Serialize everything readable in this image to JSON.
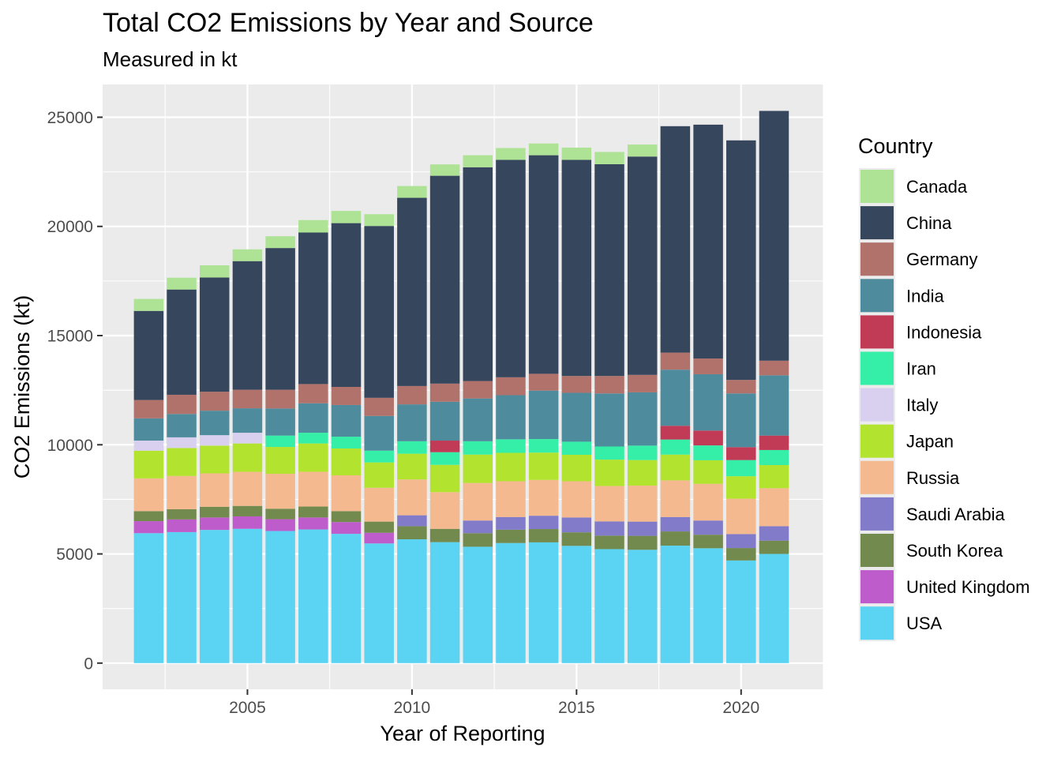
{
  "chart_data": {
    "type": "bar",
    "stacked": true,
    "title": "Total CO2 Emissions by Year and Source",
    "subtitle": "Measured in kt",
    "xlabel": "Year of Reporting",
    "ylabel": "CO2 Emissions (kt)",
    "x": [
      2002,
      2003,
      2004,
      2005,
      2006,
      2007,
      2008,
      2009,
      2010,
      2011,
      2012,
      2013,
      2014,
      2015,
      2016,
      2017,
      2018,
      2019,
      2020,
      2021
    ],
    "xlim": [
      2000.6,
      2022.5
    ],
    "x_ticks": [
      2005,
      2010,
      2015,
      2020
    ],
    "ylim": [
      -1200,
      26500
    ],
    "y_ticks": [
      0,
      5000,
      10000,
      15000,
      20000,
      25000
    ],
    "legend_title": "Country",
    "legend_position": "right",
    "grid": true,
    "stack_order_bottom_to_top": [
      "USA",
      "United Kingdom",
      "South Korea",
      "Saudi Arabia",
      "Russia",
      "Japan",
      "Italy",
      "Iran",
      "Indonesia",
      "India",
      "Germany",
      "China",
      "Canada"
    ],
    "series": [
      {
        "name": "Canada",
        "color": "#aee396",
        "values": [
          550,
          540,
          560,
          540,
          540,
          570,
          560,
          540,
          540,
          520,
          550,
          540,
          540,
          560,
          560,
          550,
          null,
          null,
          null,
          null
        ]
      },
      {
        "name": "China",
        "color": "#36465d",
        "values": [
          4080,
          4820,
          5230,
          5890,
          6490,
          6940,
          7500,
          7870,
          8620,
          9520,
          9790,
          9960,
          10010,
          9900,
          9700,
          10000,
          10370,
          10710,
          10970,
          11440
        ]
      },
      {
        "name": "Germany",
        "color": "#b0726a",
        "values": [
          840,
          880,
          870,
          850,
          860,
          880,
          830,
          830,
          840,
          830,
          800,
          820,
          770,
          770,
          800,
          800,
          780,
          720,
          620,
          670
        ]
      },
      {
        "name": "India",
        "color": "#4e8c9d",
        "values": [
          1020,
          1070,
          1120,
          1120,
          1240,
          1350,
          1450,
          1590,
          1690,
          1780,
          1960,
          2020,
          2220,
          2240,
          2430,
          2440,
          2570,
          2580,
          2460,
          2760
        ]
      },
      {
        "name": "Indonesia",
        "color": "#c13a56",
        "values": [
          null,
          null,
          null,
          null,
          null,
          null,
          null,
          null,
          null,
          530,
          null,
          null,
          null,
          null,
          null,
          null,
          630,
          680,
          590,
          660
        ]
      },
      {
        "name": "Iran",
        "color": "#35efa8",
        "values": [
          null,
          null,
          null,
          null,
          520,
          490,
          540,
          540,
          570,
          580,
          610,
          620,
          620,
          600,
          600,
          660,
          690,
          680,
          740,
          690
        ]
      },
      {
        "name": "Italy",
        "color": "#d9d0ef",
        "values": [
          460,
          490,
          480,
          490,
          null,
          null,
          null,
          null,
          null,
          null,
          null,
          null,
          null,
          null,
          null,
          null,
          null,
          null,
          null,
          null
        ]
      },
      {
        "name": "Japan",
        "color": "#b2e42f",
        "values": [
          1270,
          1280,
          1270,
          1300,
          1230,
          1300,
          1230,
          1160,
          1180,
          1250,
          1300,
          1300,
          1250,
          1210,
          1210,
          1170,
          1180,
          1080,
          1030,
          1060
        ]
      },
      {
        "name": "Russia",
        "color": "#f4b98e",
        "values": [
          1500,
          1520,
          1530,
          1560,
          1600,
          1590,
          1640,
          1550,
          1640,
          1680,
          1720,
          1640,
          1640,
          1660,
          1620,
          1650,
          1680,
          1680,
          1620,
          1740
        ]
      },
      {
        "name": "Saudi Arabia",
        "color": "#827bc9",
        "values": [
          null,
          null,
          null,
          null,
          null,
          null,
          null,
          null,
          500,
          null,
          580,
          580,
          610,
          680,
          650,
          650,
          660,
          650,
          640,
          660
        ]
      },
      {
        "name": "South Korea",
        "color": "#728a4d",
        "values": [
          460,
          470,
          490,
          480,
          480,
          500,
          500,
          510,
          600,
          610,
          620,
          610,
          610,
          620,
          620,
          640,
          650,
          620,
          570,
          610
        ]
      },
      {
        "name": "United Kingdom",
        "color": "#bf5ccc",
        "values": [
          550,
          580,
          570,
          570,
          540,
          550,
          540,
          490,
          null,
          null,
          null,
          null,
          null,
          null,
          null,
          null,
          null,
          null,
          null,
          null
        ]
      },
      {
        "name": "USA",
        "color": "#5bd4f4",
        "values": [
          5950,
          6000,
          6100,
          6150,
          6050,
          6120,
          5920,
          5480,
          5670,
          5540,
          5330,
          5500,
          5530,
          5370,
          5220,
          5190,
          5380,
          5260,
          4700,
          5000
        ]
      }
    ]
  }
}
